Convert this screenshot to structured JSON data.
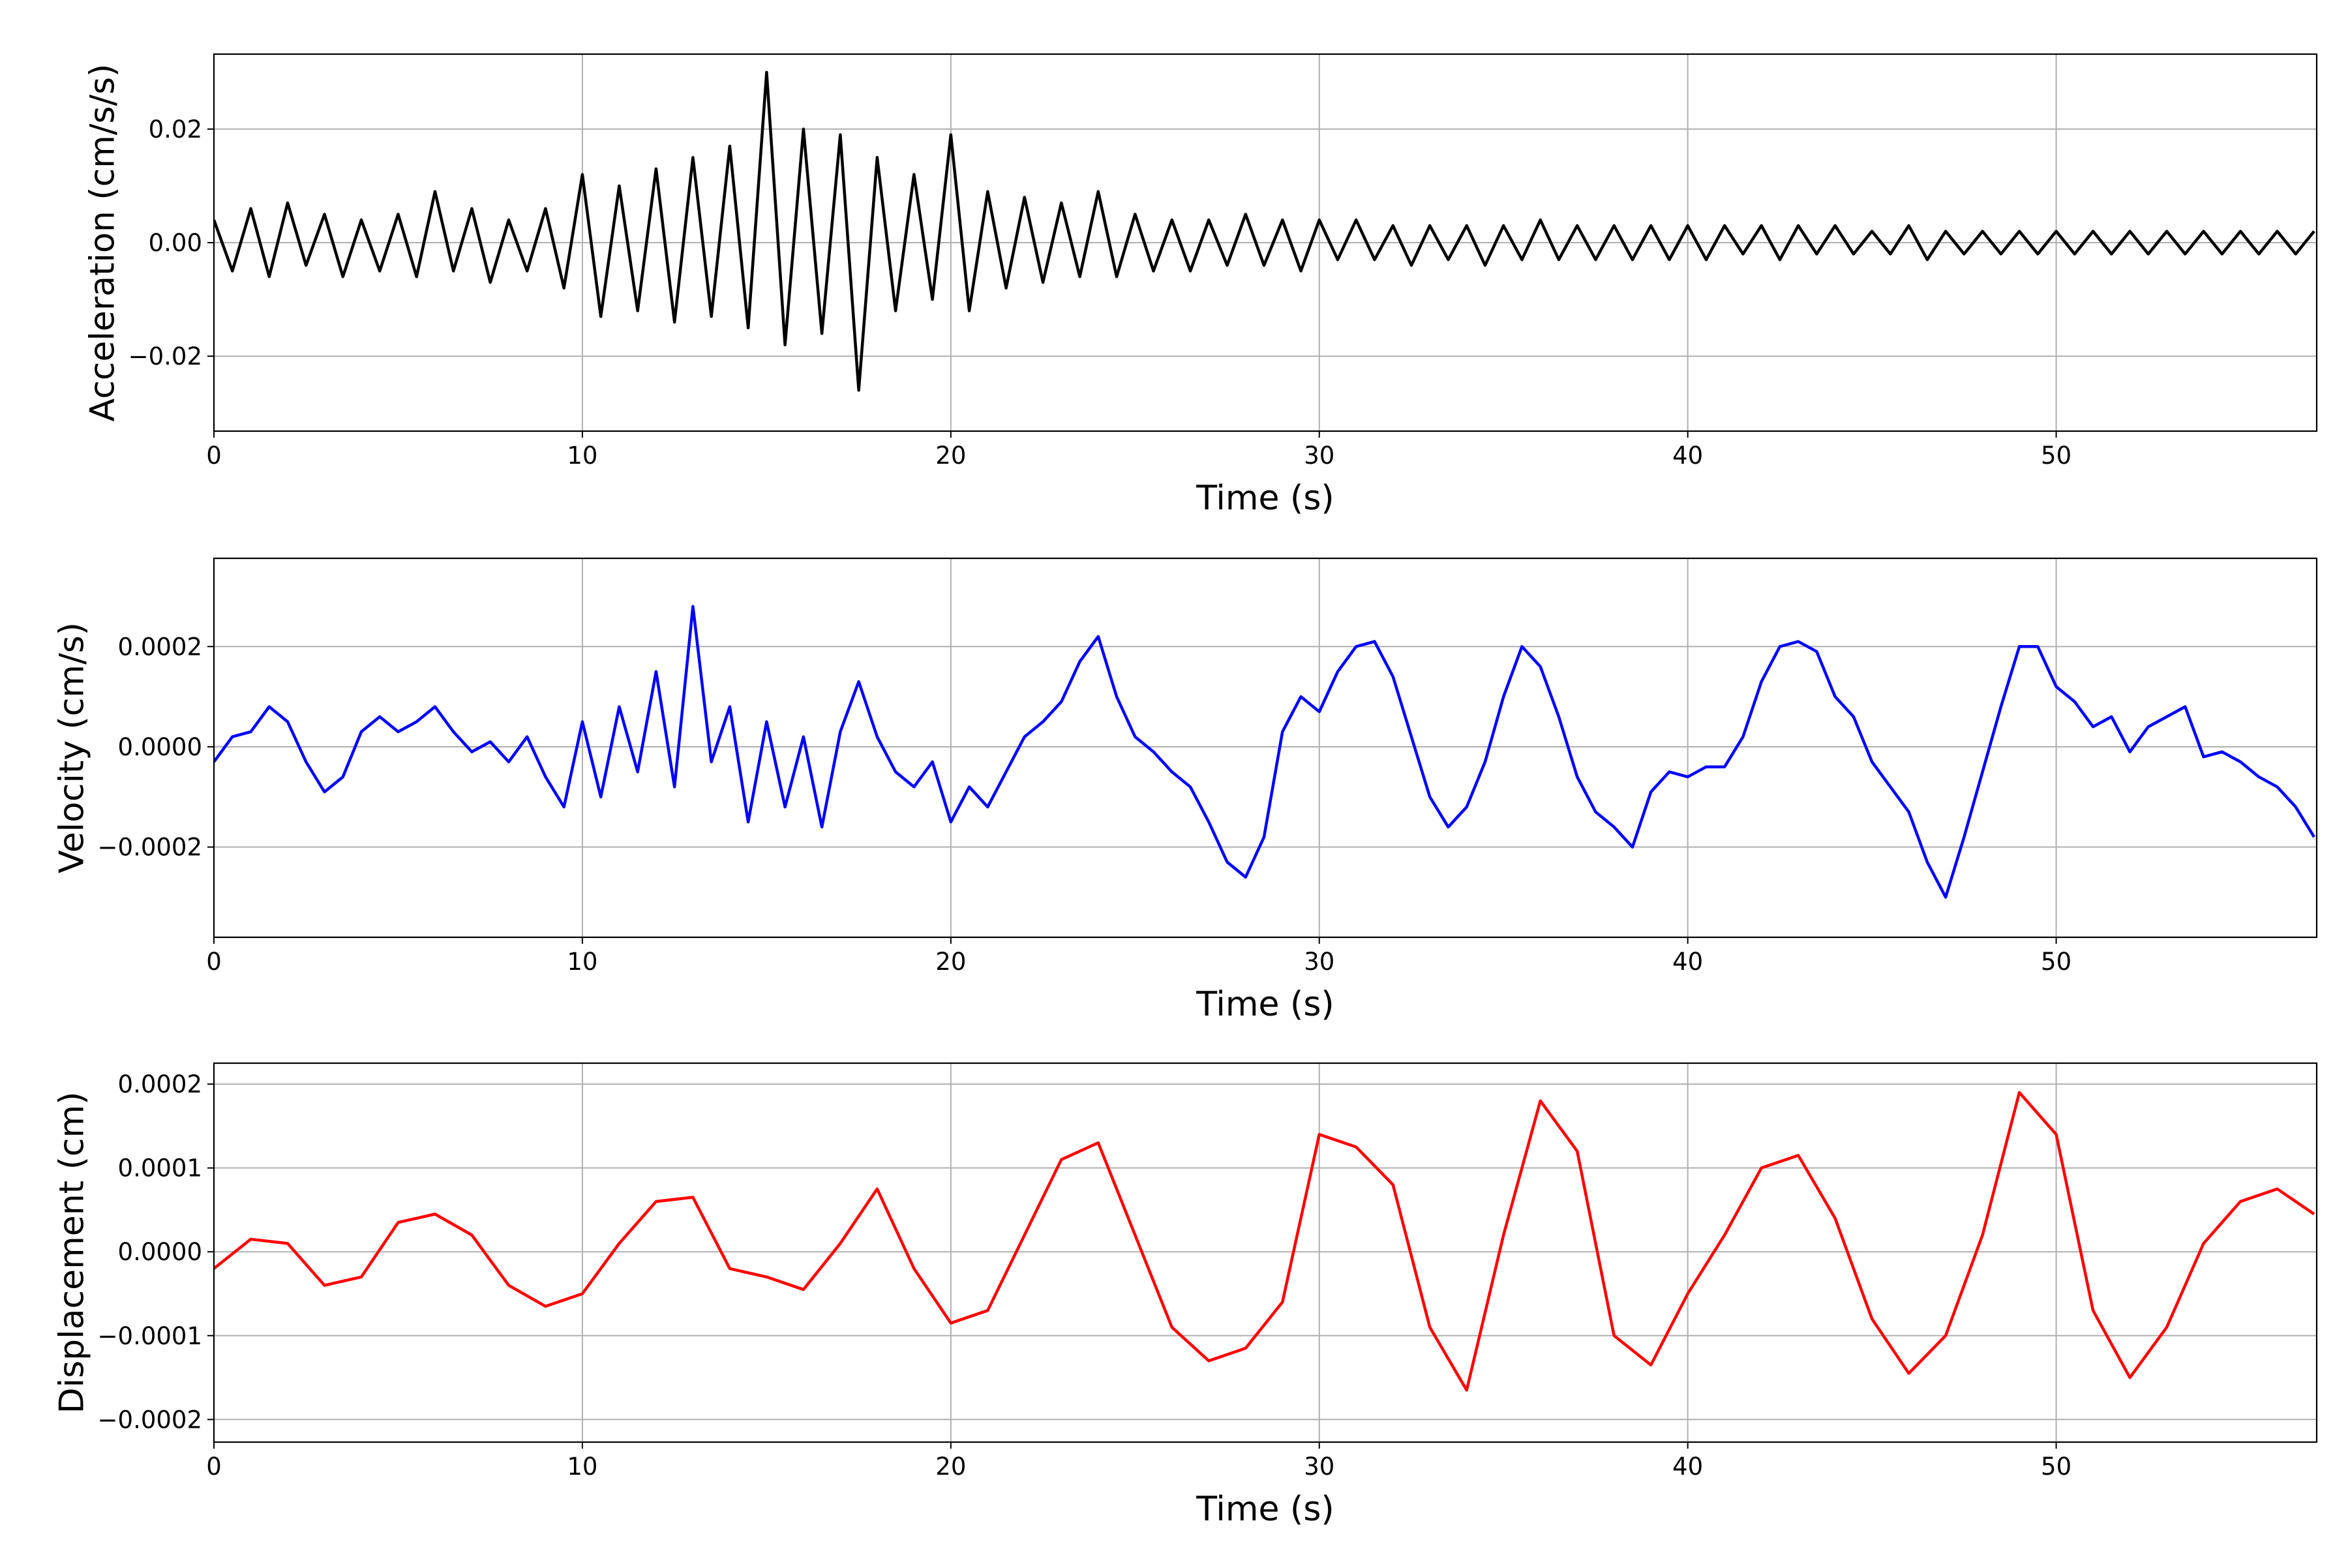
{
  "chart_data": [
    {
      "type": "line",
      "ylabel": "Acceleration (cm/s/s)",
      "xlabel": "Time (s)",
      "color": "#000000",
      "grid": true,
      "xlim": [
        0,
        57.07
      ],
      "xticks": [
        0,
        10,
        20,
        30,
        40,
        50
      ],
      "ylim": [
        -0.0332,
        0.0332
      ],
      "yticks": [
        {
          "value": -0.02,
          "label": "−0.02"
        },
        {
          "value": 0,
          "label": "0.00"
        },
        {
          "value": 0.02,
          "label": "0.02"
        }
      ],
      "x": [
        0,
        0.5,
        1,
        1.5,
        2,
        2.5,
        3,
        3.5,
        4,
        4.5,
        5,
        5.5,
        6,
        6.5,
        7,
        7.5,
        8,
        8.5,
        9,
        9.5,
        10,
        10.5,
        11,
        11.5,
        12,
        12.5,
        13,
        13.5,
        14,
        14.5,
        15,
        15.5,
        16,
        16.5,
        17,
        17.5,
        18,
        18.5,
        19,
        19.5,
        20,
        20.5,
        21,
        21.5,
        22,
        22.5,
        23,
        23.5,
        24,
        24.5,
        25,
        25.5,
        26,
        26.5,
        27,
        27.5,
        28,
        28.5,
        29,
        29.5,
        30,
        30.5,
        31,
        31.5,
        32,
        32.5,
        33,
        33.5,
        34,
        34.5,
        35,
        35.5,
        36,
        36.5,
        37,
        37.5,
        38,
        38.5,
        39,
        39.5,
        40,
        40.5,
        41,
        41.5,
        42,
        42.5,
        43,
        43.5,
        44,
        44.5,
        45,
        45.5,
        46,
        46.5,
        47,
        47.5,
        48,
        48.5,
        49,
        49.5,
        50,
        50.5,
        51,
        51.5,
        52,
        52.5,
        53,
        53.5,
        54,
        54.5,
        55,
        55.5,
        56,
        56.5,
        57
      ],
      "values": [
        0.004,
        -0.005,
        0.006,
        -0.006,
        0.007,
        -0.004,
        0.005,
        -0.006,
        0.004,
        -0.005,
        0.005,
        -0.006,
        0.009,
        -0.005,
        0.006,
        -0.007,
        0.004,
        -0.005,
        0.006,
        -0.008,
        0.012,
        -0.013,
        0.01,
        -0.012,
        0.013,
        -0.014,
        0.015,
        -0.013,
        0.017,
        -0.015,
        0.03,
        -0.018,
        0.02,
        -0.016,
        0.019,
        -0.026,
        0.015,
        -0.012,
        0.012,
        -0.01,
        0.019,
        -0.012,
        0.009,
        -0.008,
        0.008,
        -0.007,
        0.007,
        -0.006,
        0.009,
        -0.006,
        0.005,
        -0.005,
        0.004,
        -0.005,
        0.004,
        -0.004,
        0.005,
        -0.004,
        0.004,
        -0.005,
        0.004,
        -0.003,
        0.004,
        -0.003,
        0.003,
        -0.004,
        0.003,
        -0.003,
        0.003,
        -0.004,
        0.003,
        -0.003,
        0.004,
        -0.003,
        0.003,
        -0.003,
        0.003,
        -0.003,
        0.003,
        -0.003,
        0.003,
        -0.003,
        0.003,
        -0.002,
        0.003,
        -0.003,
        0.003,
        -0.002,
        0.003,
        -0.002,
        0.002,
        -0.002,
        0.003,
        -0.003,
        0.002,
        -0.002,
        0.002,
        -0.002,
        0.002,
        -0.002,
        0.002,
        -0.002,
        0.002,
        -0.002,
        0.002,
        -0.002,
        0.002,
        -0.002,
        0.002,
        -0.002,
        0.002,
        -0.002,
        0.002,
        -0.002,
        0.002
      ]
    },
    {
      "type": "line",
      "ylabel": "Velocity (cm/s)",
      "xlabel": "Time (s)",
      "color": "#0000ff",
      "grid": true,
      "xlim": [
        0,
        57.07
      ],
      "xticks": [
        0,
        10,
        20,
        30,
        40,
        50
      ],
      "ylim": [
        -0.00038,
        0.000376
      ],
      "yticks": [
        {
          "value": -0.0002,
          "label": "−0.0002"
        },
        {
          "value": 0,
          "label": "0.0000"
        },
        {
          "value": 0.0002,
          "label": "0.0002"
        }
      ],
      "x": [
        0,
        0.5,
        1,
        1.5,
        2,
        2.5,
        3,
        3.5,
        4,
        4.5,
        5,
        5.5,
        6,
        6.5,
        7,
        7.5,
        8,
        8.5,
        9,
        9.5,
        10,
        10.5,
        11,
        11.5,
        12,
        12.5,
        13,
        13.5,
        14,
        14.5,
        15,
        15.5,
        16,
        16.5,
        17,
        17.5,
        18,
        18.5,
        19,
        19.5,
        20,
        20.5,
        21,
        21.5,
        22,
        22.5,
        23,
        23.5,
        24,
        24.5,
        25,
        25.5,
        26,
        26.5,
        27,
        27.5,
        28,
        28.5,
        29,
        29.5,
        30,
        30.5,
        31,
        31.5,
        32,
        32.5,
        33,
        33.5,
        34,
        34.5,
        35,
        35.5,
        36,
        36.5,
        37,
        37.5,
        38,
        38.5,
        39,
        39.5,
        40,
        40.5,
        41,
        41.5,
        42,
        42.5,
        43,
        43.5,
        44,
        44.5,
        45,
        45.5,
        46,
        46.5,
        47,
        47.5,
        48,
        48.5,
        49,
        49.5,
        50,
        50.5,
        51,
        51.5,
        52,
        52.5,
        53,
        53.5,
        54,
        54.5,
        55,
        55.5,
        56,
        56.5,
        57
      ],
      "values": [
        -3e-05,
        2e-05,
        3e-05,
        8e-05,
        5e-05,
        -3e-05,
        -9e-05,
        -6e-05,
        3e-05,
        6e-05,
        3e-05,
        5e-05,
        8e-05,
        3e-05,
        -1e-05,
        1e-05,
        -3e-05,
        2e-05,
        -6e-05,
        -0.00012,
        5e-05,
        -0.0001,
        8e-05,
        -5e-05,
        0.00015,
        -8e-05,
        0.00028,
        -3e-05,
        8e-05,
        -0.00015,
        5e-05,
        -0.00012,
        2e-05,
        -0.00016,
        3e-05,
        0.00013,
        2e-05,
        -5e-05,
        -8e-05,
        -3e-05,
        -0.00015,
        -8e-05,
        -0.00012,
        -5e-05,
        2e-05,
        5e-05,
        9e-05,
        0.00017,
        0.00022,
        0.0001,
        2e-05,
        -1e-05,
        -5e-05,
        -8e-05,
        -0.00015,
        -0.00023,
        -0.00026,
        -0.00018,
        3e-05,
        0.0001,
        7e-05,
        0.00015,
        0.0002,
        0.00021,
        0.00014,
        2e-05,
        -0.0001,
        -0.00016,
        -0.00012,
        -3e-05,
        0.0001,
        0.0002,
        0.00016,
        6e-05,
        -6e-05,
        -0.00013,
        -0.00016,
        -0.0002,
        -9e-05,
        -5e-05,
        -6e-05,
        -4e-05,
        -4e-05,
        2e-05,
        0.00013,
        0.0002,
        0.00021,
        0.00019,
        0.0001,
        6e-05,
        -3e-05,
        -8e-05,
        -0.00013,
        -0.00023,
        -0.0003,
        -0.00018,
        -5e-05,
        8e-05,
        0.0002,
        0.0002,
        0.00012,
        9e-05,
        4e-05,
        6e-05,
        -1e-05,
        4e-05,
        6e-05,
        8e-05,
        -2e-05,
        -1e-05,
        -3e-05,
        -6e-05,
        -8e-05,
        -0.00012,
        -0.00018
      ]
    },
    {
      "type": "line",
      "ylabel": "Displacement (cm)",
      "xlabel": "Time (s)",
      "color": "#ff0000",
      "grid": true,
      "xlim": [
        0,
        57.07
      ],
      "xticks": [
        0,
        10,
        20,
        30,
        40,
        50
      ],
      "ylim": [
        -0.000227,
        0.000225
      ],
      "yticks": [
        {
          "value": -0.0002,
          "label": "−0.0002"
        },
        {
          "value": -0.0001,
          "label": "−0.0001"
        },
        {
          "value": 0,
          "label": "0.0000"
        },
        {
          "value": 0.0001,
          "label": "0.0001"
        },
        {
          "value": 0.0002,
          "label": "0.0002"
        }
      ],
      "x": [
        0,
        1,
        2,
        3,
        4,
        5,
        6,
        7,
        8,
        9,
        10,
        11,
        12,
        13,
        14,
        15,
        16,
        17,
        18,
        19,
        20,
        21,
        22,
        23,
        24,
        25,
        26,
        27,
        28,
        29,
        30,
        31,
        32,
        33,
        34,
        35,
        36,
        37,
        38,
        39,
        40,
        41,
        42,
        43,
        44,
        45,
        46,
        47,
        48,
        49,
        50,
        51,
        52,
        53,
        54,
        55,
        56,
        57
      ],
      "values": [
        -2e-05,
        1.5e-05,
        1e-05,
        -4e-05,
        -3e-05,
        3.5e-05,
        4.5e-05,
        2e-05,
        -4e-05,
        -6.5e-05,
        -5e-05,
        1e-05,
        6e-05,
        6.5e-05,
        -2e-05,
        -3e-05,
        -4.5e-05,
        1e-05,
        7.5e-05,
        -2e-05,
        -8.5e-05,
        -7e-05,
        2e-05,
        0.00011,
        0.00013,
        2e-05,
        -9e-05,
        -0.00013,
        -0.000115,
        -6e-05,
        0.00014,
        0.000125,
        8e-05,
        -9e-05,
        -0.000165,
        2e-05,
        0.00018,
        0.00012,
        -0.0001,
        -0.000135,
        -5e-05,
        2e-05,
        0.0001,
        0.000115,
        4e-05,
        -8e-05,
        -0.000145,
        -0.0001,
        2e-05,
        0.00019,
        0.00014,
        -7e-05,
        -0.00015,
        -9e-05,
        1e-05,
        6e-05,
        7.5e-05,
        4.5e-05
      ]
    }
  ]
}
